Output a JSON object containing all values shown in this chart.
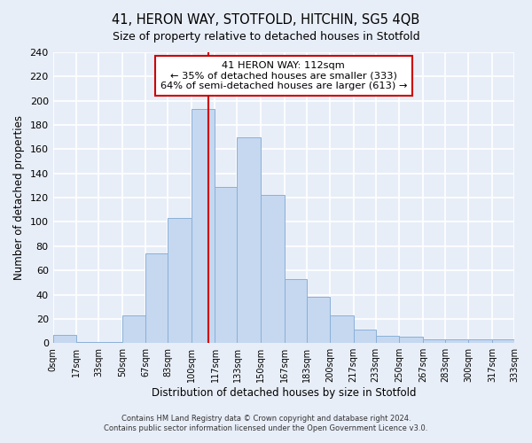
{
  "title": "41, HERON WAY, STOTFOLD, HITCHIN, SG5 4QB",
  "subtitle": "Size of property relative to detached houses in Stotfold",
  "xlabel": "Distribution of detached houses by size in Stotfold",
  "ylabel": "Number of detached properties",
  "bin_edges": [
    0,
    17,
    33,
    50,
    67,
    83,
    100,
    117,
    133,
    150,
    167,
    183,
    200,
    217,
    233,
    250,
    267,
    283,
    300,
    317,
    333
  ],
  "bin_counts": [
    7,
    1,
    1,
    23,
    74,
    103,
    193,
    129,
    170,
    122,
    53,
    38,
    23,
    11,
    6,
    5,
    3,
    3,
    3,
    3
  ],
  "bar_color": "#c5d8f0",
  "bar_edge_color": "#8ab0d8",
  "vline_x": 112,
  "vline_color": "#cc0000",
  "annotation_title": "41 HERON WAY: 112sqm",
  "annotation_line1": "← 35% of detached houses are smaller (333)",
  "annotation_line2": "64% of semi-detached houses are larger (613) →",
  "annotation_box_color": "#ffffff",
  "annotation_box_edge": "#cc0000",
  "ylim": [
    0,
    240
  ],
  "yticks": [
    0,
    20,
    40,
    60,
    80,
    100,
    120,
    140,
    160,
    180,
    200,
    220,
    240
  ],
  "tick_labels": [
    "0sqm",
    "17sqm",
    "33sqm",
    "50sqm",
    "67sqm",
    "83sqm",
    "100sqm",
    "117sqm",
    "133sqm",
    "150sqm",
    "167sqm",
    "183sqm",
    "200sqm",
    "217sqm",
    "233sqm",
    "250sqm",
    "267sqm",
    "283sqm",
    "300sqm",
    "317sqm",
    "333sqm"
  ],
  "footnote1": "Contains HM Land Registry data © Crown copyright and database right 2024.",
  "footnote2": "Contains public sector information licensed under the Open Government Licence v3.0.",
  "background_color": "#e8eef8",
  "grid_color": "#ffffff"
}
